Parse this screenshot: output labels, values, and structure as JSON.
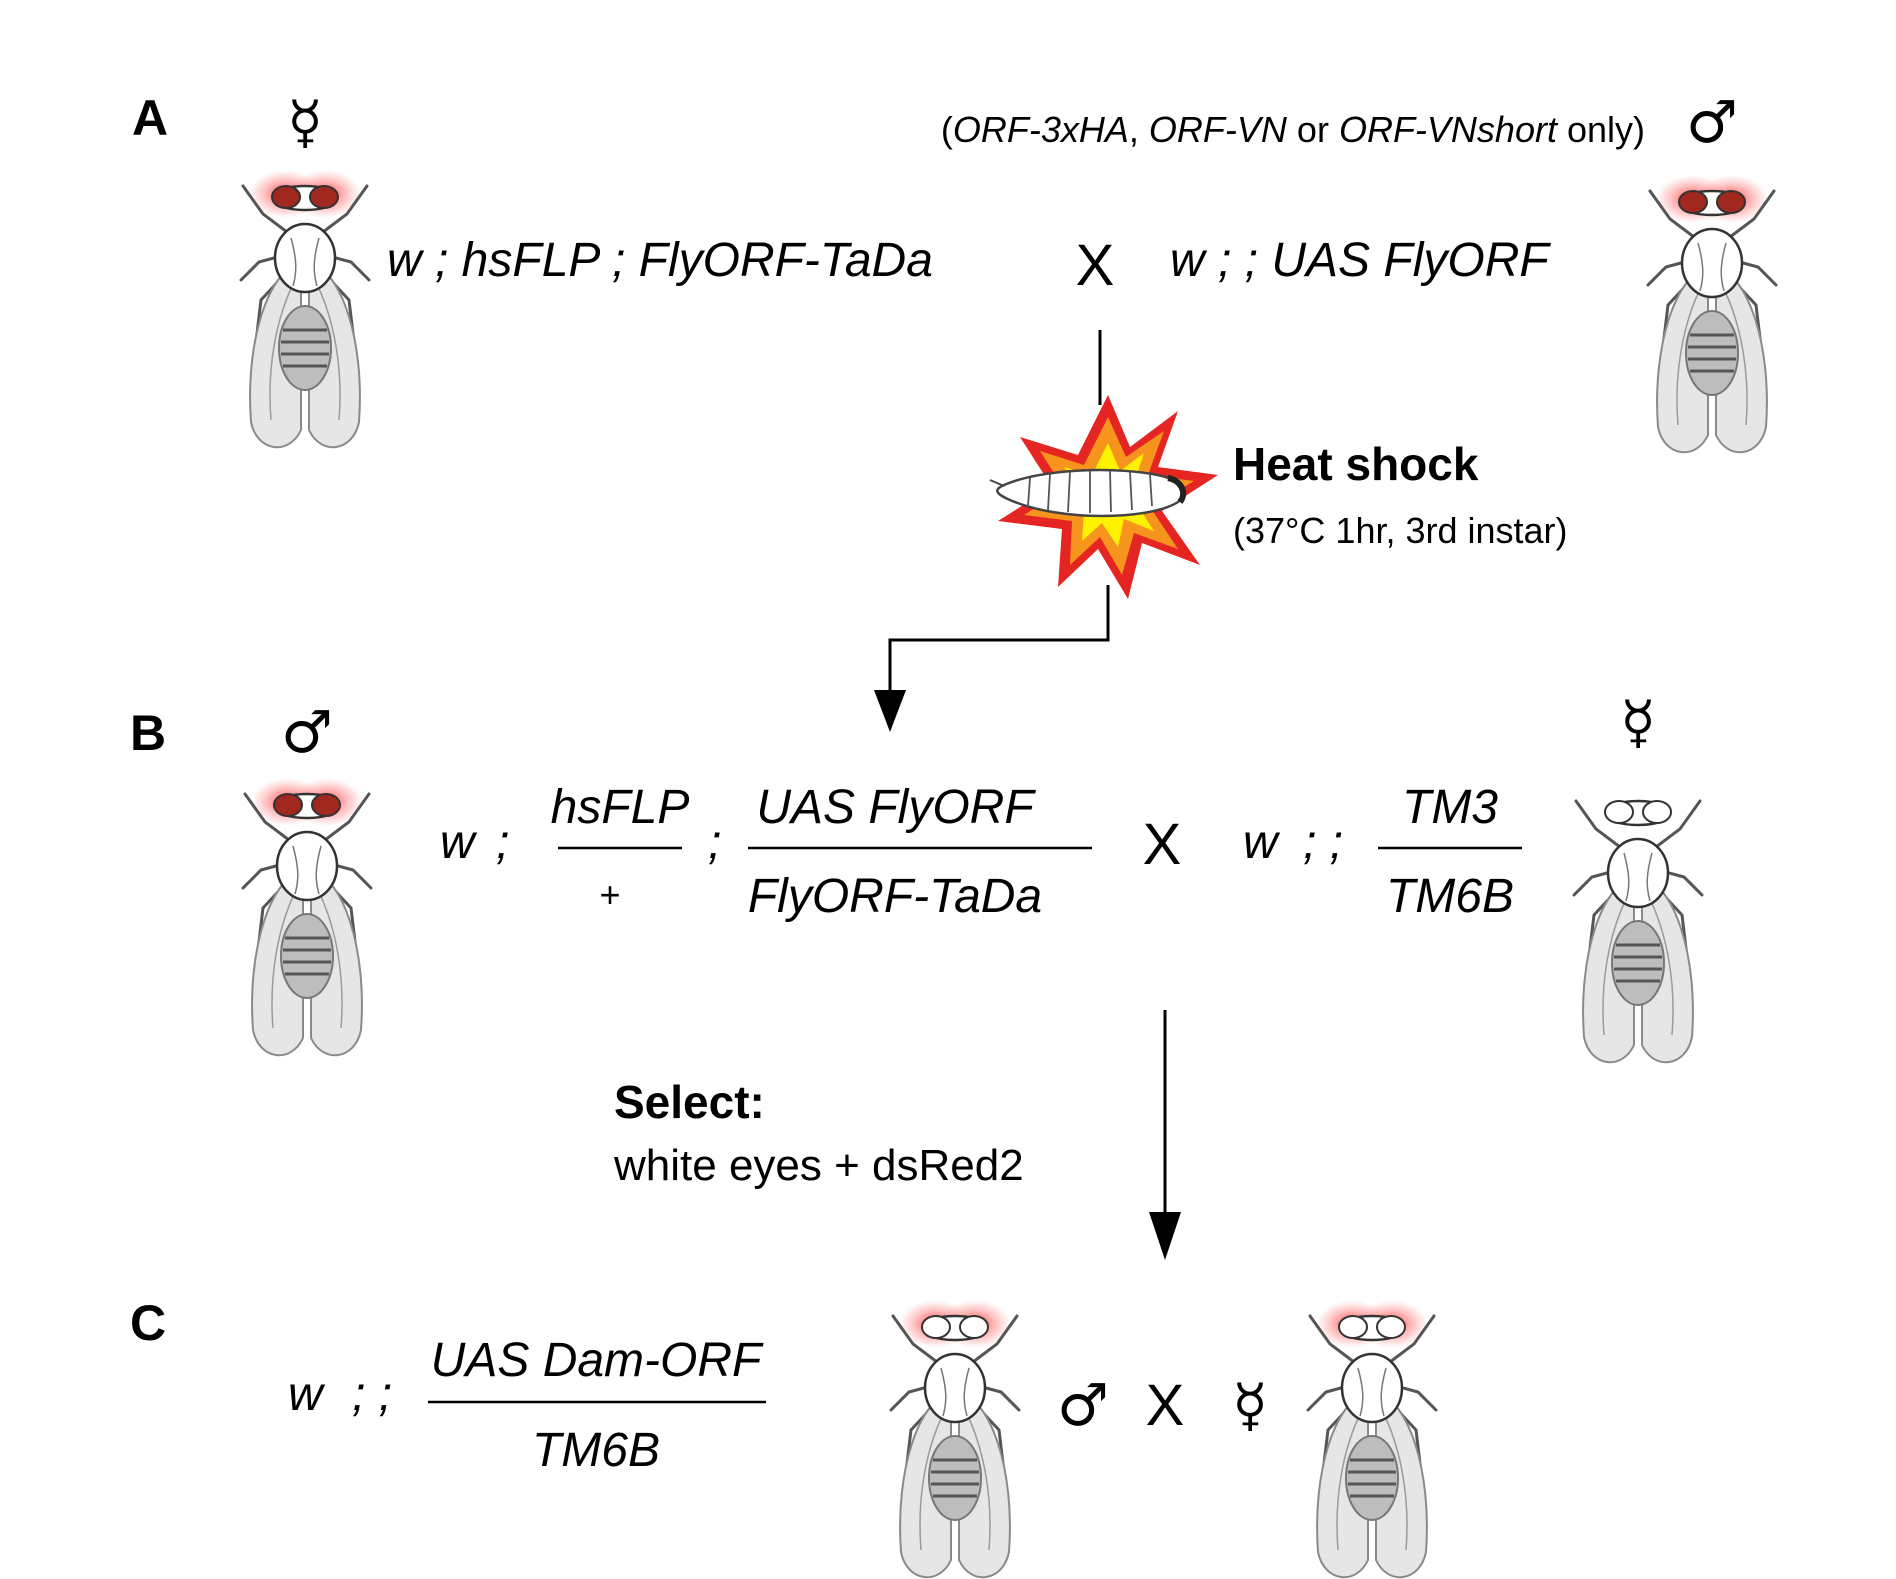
{
  "panels": {
    "a": {
      "label": "A",
      "female_symbol": "☿",
      "male_symbol": "♂",
      "note_parts": [
        {
          "text": "(",
          "italic": false
        },
        {
          "text": "ORF-3xHA",
          "italic": true
        },
        {
          "text": ", ",
          "italic": false
        },
        {
          "text": "ORF-VN",
          "italic": true
        },
        {
          "text": " or ",
          "italic": false
        },
        {
          "text": "ORF-VNshort",
          "italic": true
        },
        {
          "text": " only)",
          "italic": false
        }
      ],
      "left_genotype": "w ; hsFLP ; FlyORF-TaDa",
      "cross": "X",
      "right_genotype": "w ; ; UAS FlyORF"
    },
    "heat": {
      "title": "Heat shock",
      "detail": "(37°C 1hr, 3rd instar)"
    },
    "b": {
      "label": "B",
      "male_symbol": "♂",
      "female_symbol": "☿",
      "w": "w",
      "semi1": ";",
      "chr2_top": "hsFLP",
      "chr2_bottom": "+",
      "semi2": ";",
      "chr3_top": "UAS FlyORF",
      "chr3_bottom": "FlyORF-TaDa",
      "cross": "X",
      "w2": "w",
      "semis": "; ;",
      "bal_top": "TM3",
      "bal_bottom": "TM6B"
    },
    "select": {
      "title": "Select:",
      "detail": "white eyes + dsRed2"
    },
    "c": {
      "label": "C",
      "w": "w",
      "semis": "; ;",
      "top": "UAS Dam-ORF",
      "bottom": "TM6B",
      "male_symbol": "♂",
      "cross": "X",
      "female_symbol": "☿"
    }
  },
  "colors": {
    "red_eye": "#a0281e",
    "eye_glow": "#ff3030",
    "burst_outer": "#e52521",
    "burst_mid": "#f7941d",
    "burst_inner": "#fff200"
  }
}
